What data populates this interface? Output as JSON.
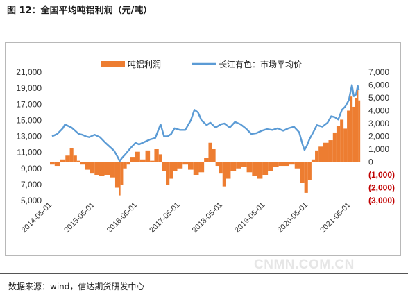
{
  "header": {
    "title": "图 12：全国平均吨铝利润（元/吨）"
  },
  "footer": {
    "source": "数据来源：wind，信达期货研发中心",
    "watermark": "CNMN.COM.CN"
  },
  "colors": {
    "bars": "#ED7D31",
    "line": "#5B9BD5",
    "negative_tick": "#C00000",
    "text": "#333333"
  },
  "chart_data": {
    "type": "bar+line",
    "title": "",
    "x_tick_labels": [
      "2014-05-01",
      "2015-05-01",
      "2016-05-01",
      "2017-05-01",
      "2018-05-01",
      "2019-05-01",
      "2020-05-01",
      "2021-05-01"
    ],
    "x_range": [
      "2014-05-01",
      "2021-07-15"
    ],
    "y_left": {
      "ticks": [
        "21,000",
        "19,000",
        "17,000",
        "15,000",
        "13,000",
        "11,000",
        "9,000",
        "7,000",
        "5,000"
      ],
      "range": [
        5000,
        21000
      ]
    },
    "y_right": {
      "ticks": [
        "7,000",
        "6,000",
        "5,000",
        "4,000",
        "3,000",
        "2,000",
        "1,000",
        "0",
        "(1,000)",
        "(2,000)",
        "(3,000)"
      ],
      "range": [
        -3000,
        7000
      ]
    },
    "legend": {
      "position": "top",
      "entries": [
        "吨铝利润",
        "长江有色：市场平均价"
      ]
    },
    "series": [
      {
        "name": "吨铝利润",
        "axis": "right",
        "kind": "bar",
        "points": [
          [
            "2014-05-01",
            -200
          ],
          [
            "2014-06-15",
            -300
          ],
          [
            "2014-08-01",
            200
          ],
          [
            "2014-09-15",
            500
          ],
          [
            "2014-10-15",
            1100
          ],
          [
            "2014-11-15",
            500
          ],
          [
            "2014-12-15",
            100
          ],
          [
            "2015-01-15",
            -200
          ],
          [
            "2015-03-01",
            -600
          ],
          [
            "2015-04-15",
            -900
          ],
          [
            "2015-05-15",
            -1000
          ],
          [
            "2015-07-01",
            -1100
          ],
          [
            "2015-08-15",
            -1000
          ],
          [
            "2015-10-01",
            -1200
          ],
          [
            "2015-11-15",
            -2000
          ],
          [
            "2015-12-01",
            -2600
          ],
          [
            "2015-12-15",
            -1800
          ],
          [
            "2016-01-15",
            -500
          ],
          [
            "2016-02-15",
            -200
          ],
          [
            "2016-03-15",
            400
          ],
          [
            "2016-05-01",
            800
          ],
          [
            "2016-06-15",
            200
          ],
          [
            "2016-08-01",
            900
          ],
          [
            "2016-09-01",
            100
          ],
          [
            "2016-10-15",
            1000
          ],
          [
            "2016-11-15",
            600
          ],
          [
            "2016-12-15",
            -700
          ],
          [
            "2017-01-15",
            -1800
          ],
          [
            "2017-02-15",
            -1300
          ],
          [
            "2017-03-15",
            -700
          ],
          [
            "2017-05-01",
            -500
          ],
          [
            "2017-06-15",
            -200
          ],
          [
            "2017-08-01",
            -600
          ],
          [
            "2017-09-15",
            -1000
          ],
          [
            "2017-11-01",
            -800
          ],
          [
            "2017-12-15",
            300
          ],
          [
            "2018-01-15",
            1500
          ],
          [
            "2018-02-15",
            1000
          ],
          [
            "2018-03-15",
            -300
          ],
          [
            "2018-04-15",
            -900
          ],
          [
            "2018-05-15",
            -1900
          ],
          [
            "2018-06-15",
            -1300
          ],
          [
            "2018-08-01",
            -700
          ],
          [
            "2018-09-15",
            -500
          ],
          [
            "2018-11-01",
            -400
          ],
          [
            "2018-12-15",
            -800
          ],
          [
            "2019-02-01",
            -1100
          ],
          [
            "2019-03-15",
            -1300
          ],
          [
            "2019-05-01",
            -1000
          ],
          [
            "2019-06-15",
            -700
          ],
          [
            "2019-08-01",
            -400
          ],
          [
            "2019-09-15",
            -300
          ],
          [
            "2019-11-01",
            -300
          ],
          [
            "2019-12-15",
            -200
          ],
          [
            "2020-02-01",
            -500
          ],
          [
            "2020-03-15",
            -1600
          ],
          [
            "2020-04-15",
            -2400
          ],
          [
            "2020-05-15",
            -1400
          ],
          [
            "2020-06-15",
            200
          ],
          [
            "2020-07-15",
            900
          ],
          [
            "2020-08-15",
            1200
          ],
          [
            "2020-10-01",
            1500
          ],
          [
            "2020-11-15",
            1700
          ],
          [
            "2020-12-15",
            2300
          ],
          [
            "2021-01-15",
            2800
          ],
          [
            "2021-02-15",
            3300
          ],
          [
            "2021-03-15",
            2600
          ],
          [
            "2021-04-15",
            4000
          ],
          [
            "2021-05-10",
            5100
          ],
          [
            "2021-05-25",
            4300
          ],
          [
            "2021-06-15",
            5000
          ],
          [
            "2021-07-01",
            5600
          ],
          [
            "2021-07-10",
            4800
          ]
        ]
      },
      {
        "name": "长江有色：市场平均价",
        "axis": "left",
        "kind": "line",
        "points": [
          [
            "2014-05-01",
            13000
          ],
          [
            "2014-06-15",
            13300
          ],
          [
            "2014-08-01",
            14000
          ],
          [
            "2014-08-20",
            14500
          ],
          [
            "2014-09-15",
            14300
          ],
          [
            "2014-10-15",
            14100
          ],
          [
            "2014-11-15",
            13700
          ],
          [
            "2014-12-15",
            13300
          ],
          [
            "2015-01-15",
            13200
          ],
          [
            "2015-02-15",
            13000
          ],
          [
            "2015-03-15",
            12900
          ],
          [
            "2015-05-01",
            13200
          ],
          [
            "2015-06-15",
            12900
          ],
          [
            "2015-08-01",
            12200
          ],
          [
            "2015-09-15",
            11600
          ],
          [
            "2015-10-15",
            11200
          ],
          [
            "2015-11-15",
            10400
          ],
          [
            "2015-12-01",
            9900
          ],
          [
            "2015-12-20",
            10300
          ],
          [
            "2016-01-15",
            10700
          ],
          [
            "2016-03-01",
            11500
          ],
          [
            "2016-04-15",
            12200
          ],
          [
            "2016-05-15",
            12000
          ],
          [
            "2016-07-01",
            12300
          ],
          [
            "2016-08-15",
            12600
          ],
          [
            "2016-10-01",
            12800
          ],
          [
            "2016-11-15",
            14500
          ],
          [
            "2016-12-15",
            13000
          ],
          [
            "2017-01-15",
            13000
          ],
          [
            "2017-02-15",
            13300
          ],
          [
            "2017-03-15",
            14000
          ],
          [
            "2017-05-01",
            13800
          ],
          [
            "2017-06-15",
            13800
          ],
          [
            "2017-08-01",
            15000
          ],
          [
            "2017-09-01",
            16300
          ],
          [
            "2017-10-01",
            16000
          ],
          [
            "2017-11-01",
            15000
          ],
          [
            "2017-12-15",
            14400
          ],
          [
            "2018-01-15",
            14700
          ],
          [
            "2018-03-01",
            14100
          ],
          [
            "2018-04-15",
            14500
          ],
          [
            "2018-05-15",
            14600
          ],
          [
            "2018-07-01",
            14100
          ],
          [
            "2018-08-15",
            14800
          ],
          [
            "2018-10-01",
            14500
          ],
          [
            "2018-11-15",
            14000
          ],
          [
            "2019-01-01",
            13300
          ],
          [
            "2019-02-15",
            13400
          ],
          [
            "2019-04-01",
            13700
          ],
          [
            "2019-05-15",
            13900
          ],
          [
            "2019-07-01",
            13800
          ],
          [
            "2019-08-15",
            14000
          ],
          [
            "2019-10-01",
            13700
          ],
          [
            "2019-11-15",
            14000
          ],
          [
            "2020-01-01",
            14200
          ],
          [
            "2020-02-15",
            13500
          ],
          [
            "2020-03-15",
            12000
          ],
          [
            "2020-04-01",
            11300
          ],
          [
            "2020-04-20",
            11800
          ],
          [
            "2020-05-15",
            12700
          ],
          [
            "2020-06-15",
            13500
          ],
          [
            "2020-07-15",
            14400
          ],
          [
            "2020-09-01",
            14200
          ],
          [
            "2020-10-15",
            14700
          ],
          [
            "2020-11-15",
            15500
          ],
          [
            "2020-12-15",
            15400
          ],
          [
            "2021-01-15",
            15100
          ],
          [
            "2021-02-15",
            16300
          ],
          [
            "2021-03-15",
            16700
          ],
          [
            "2021-04-15",
            17500
          ],
          [
            "2021-05-12",
            19400
          ],
          [
            "2021-05-28",
            18000
          ],
          [
            "2021-06-15",
            18200
          ],
          [
            "2021-07-01",
            19300
          ],
          [
            "2021-07-10",
            18800
          ]
        ]
      }
    ]
  }
}
